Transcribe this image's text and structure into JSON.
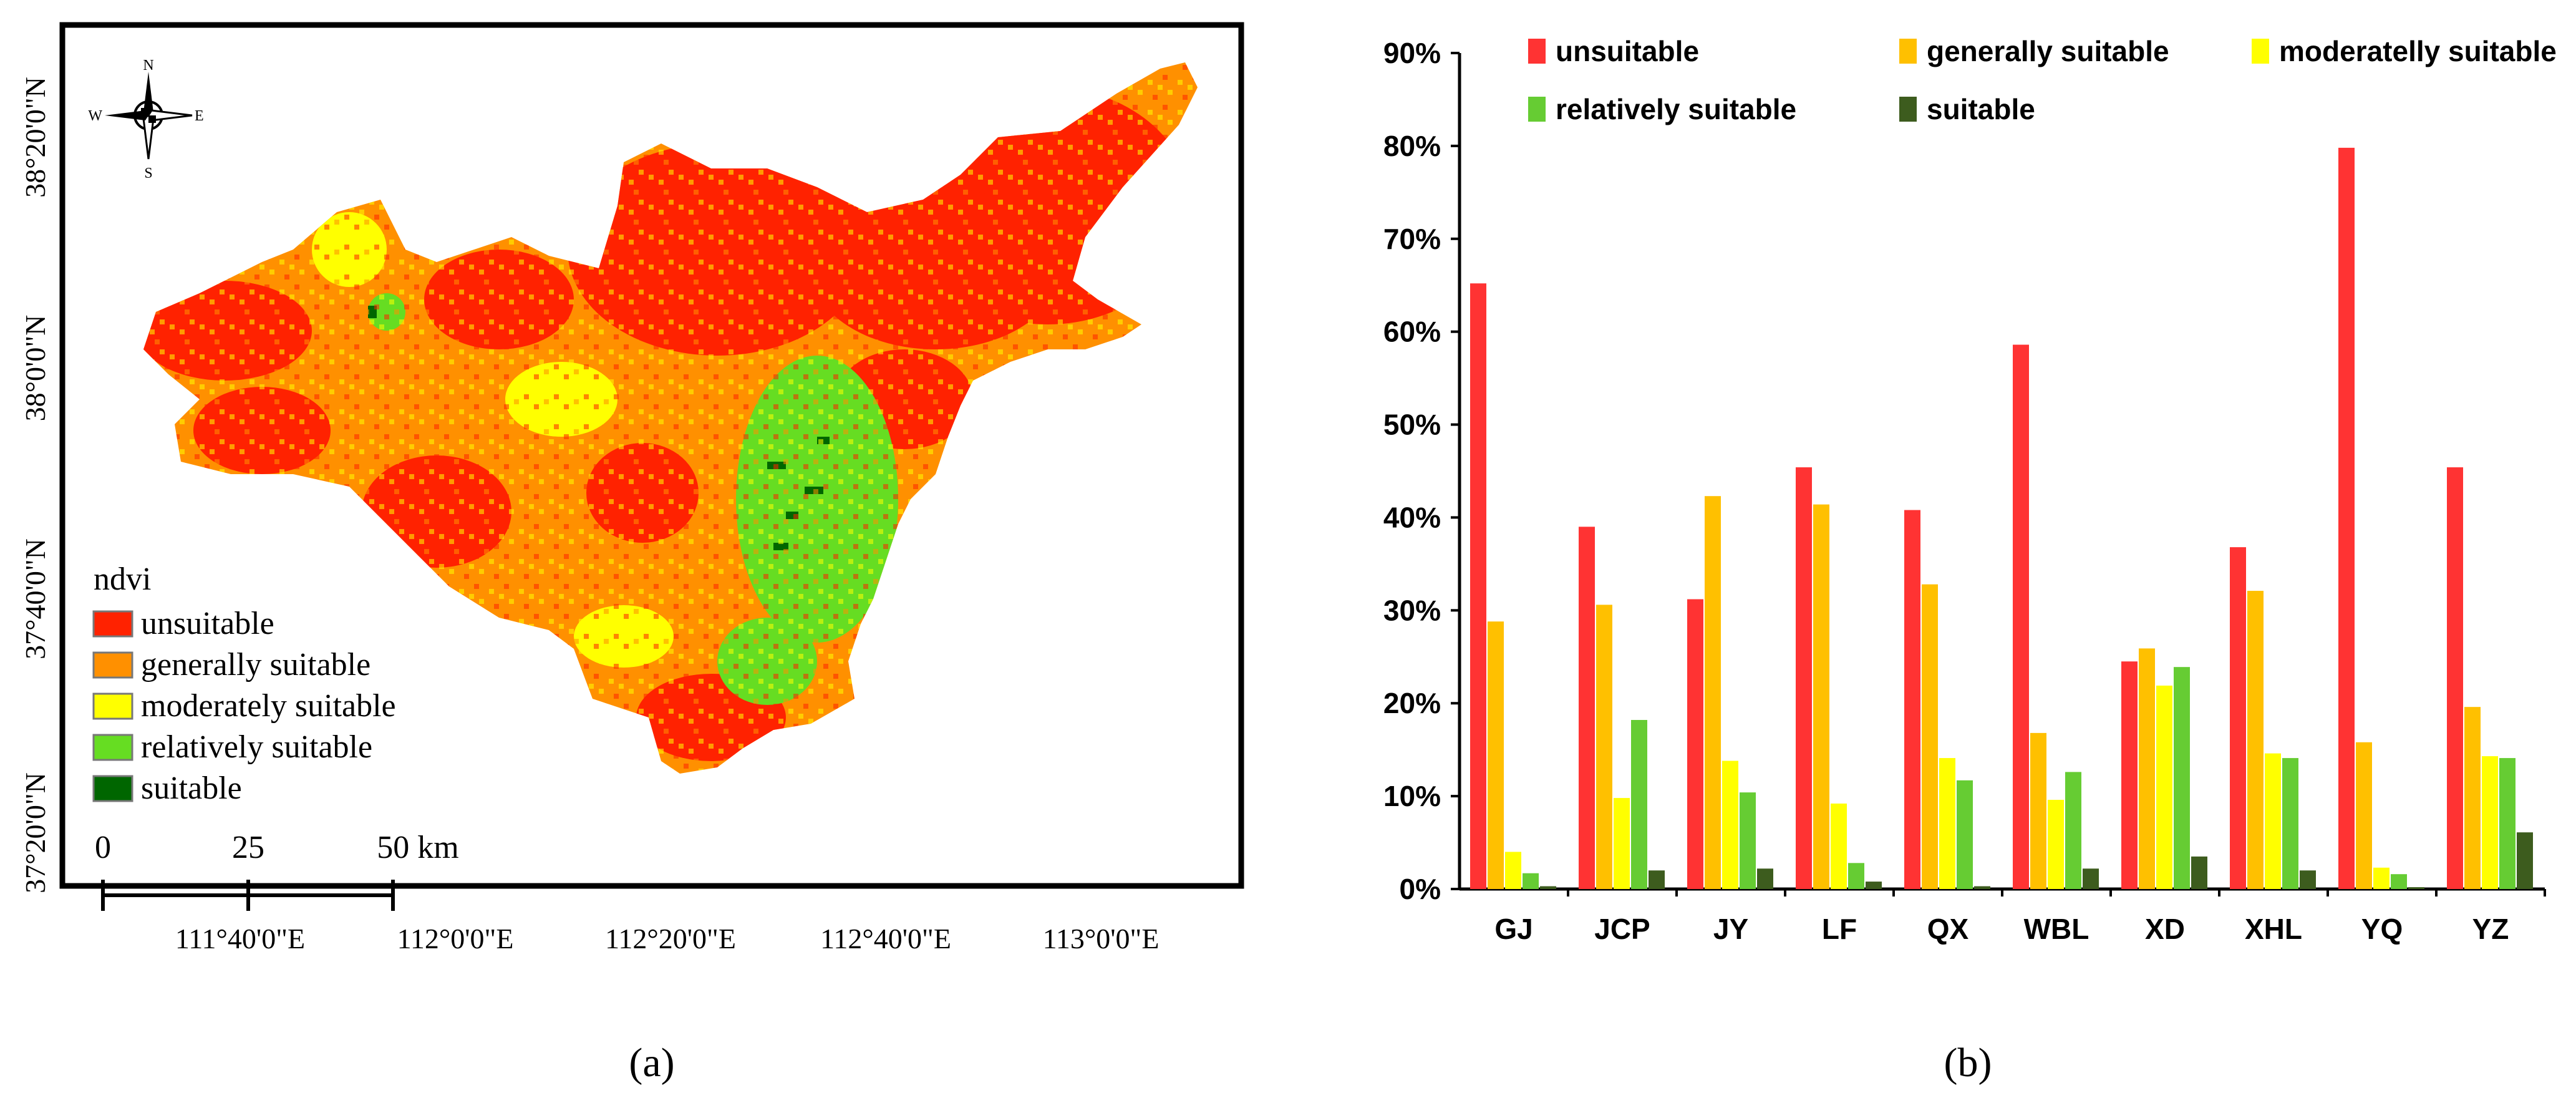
{
  "colors": {
    "unsuitable": "#ff2200",
    "generally_suitable": "#ff9000",
    "moderately_suitable": "#ffff00",
    "relatively_suitable": "#66dd22",
    "suitable": "#006600",
    "bar_unsuitable": "#ff3333",
    "bar_generally_suitable": "#ffc000",
    "bar_moderately_suitable": "#ffff00",
    "bar_relatively_suitable": "#66cc33",
    "bar_suitable": "#3d5c1e"
  },
  "panel_a": {
    "caption": "(a)",
    "legend_title": "ndvi",
    "legend_items": [
      "unsuitable",
      "generally suitable",
      "moderately suitable",
      "relatively suitable",
      "suitable"
    ],
    "compass": {
      "n": "N",
      "s": "S",
      "e": "E",
      "w": "W"
    },
    "scale_labels": [
      "0",
      "25",
      "50 km"
    ],
    "lat_labels": [
      "38°20'0\"N",
      "38°0'0\"N",
      "37°40'0\"N",
      "37°20'0\"N"
    ],
    "lon_labels": [
      "111°40'0\"E",
      "112°0'0\"E",
      "112°20'0\"E",
      "112°40'0\"E",
      "113°0'0\"E"
    ]
  },
  "panel_b": {
    "caption": "(b)"
  },
  "chart_data": {
    "type": "bar",
    "categories": [
      "GJ",
      "JCP",
      "JY",
      "LF",
      "QX",
      "WBL",
      "XD",
      "XHL",
      "YQ",
      "YZ"
    ],
    "series": [
      {
        "name": "unsuitable",
        "values": [
          65.2,
          39.0,
          31.2,
          45.4,
          40.8,
          58.6,
          24.5,
          36.8,
          79.8,
          45.4
        ]
      },
      {
        "name": "generally suitable",
        "values": [
          28.8,
          30.6,
          42.3,
          41.4,
          32.8,
          16.8,
          25.9,
          32.1,
          15.8,
          19.6
        ]
      },
      {
        "name": "moderatelly suitable",
        "values": [
          4.0,
          9.8,
          13.8,
          9.2,
          14.1,
          9.6,
          21.9,
          14.6,
          2.3,
          14.3
        ]
      },
      {
        "name": "relatively suitable",
        "values": [
          1.7,
          18.2,
          10.4,
          2.8,
          11.7,
          12.6,
          23.9,
          14.1,
          1.6,
          14.1
        ]
      },
      {
        "name": "suitable",
        "values": [
          0.3,
          2.0,
          2.2,
          0.8,
          0.3,
          2.2,
          3.5,
          2.0,
          0.2,
          6.1
        ]
      }
    ],
    "ylim": [
      0,
      90
    ],
    "yticks": [
      "0%",
      "10%",
      "20%",
      "30%",
      "40%",
      "50%",
      "60%",
      "70%",
      "80%",
      "90%"
    ],
    "legend_position": "top",
    "grid": false
  }
}
